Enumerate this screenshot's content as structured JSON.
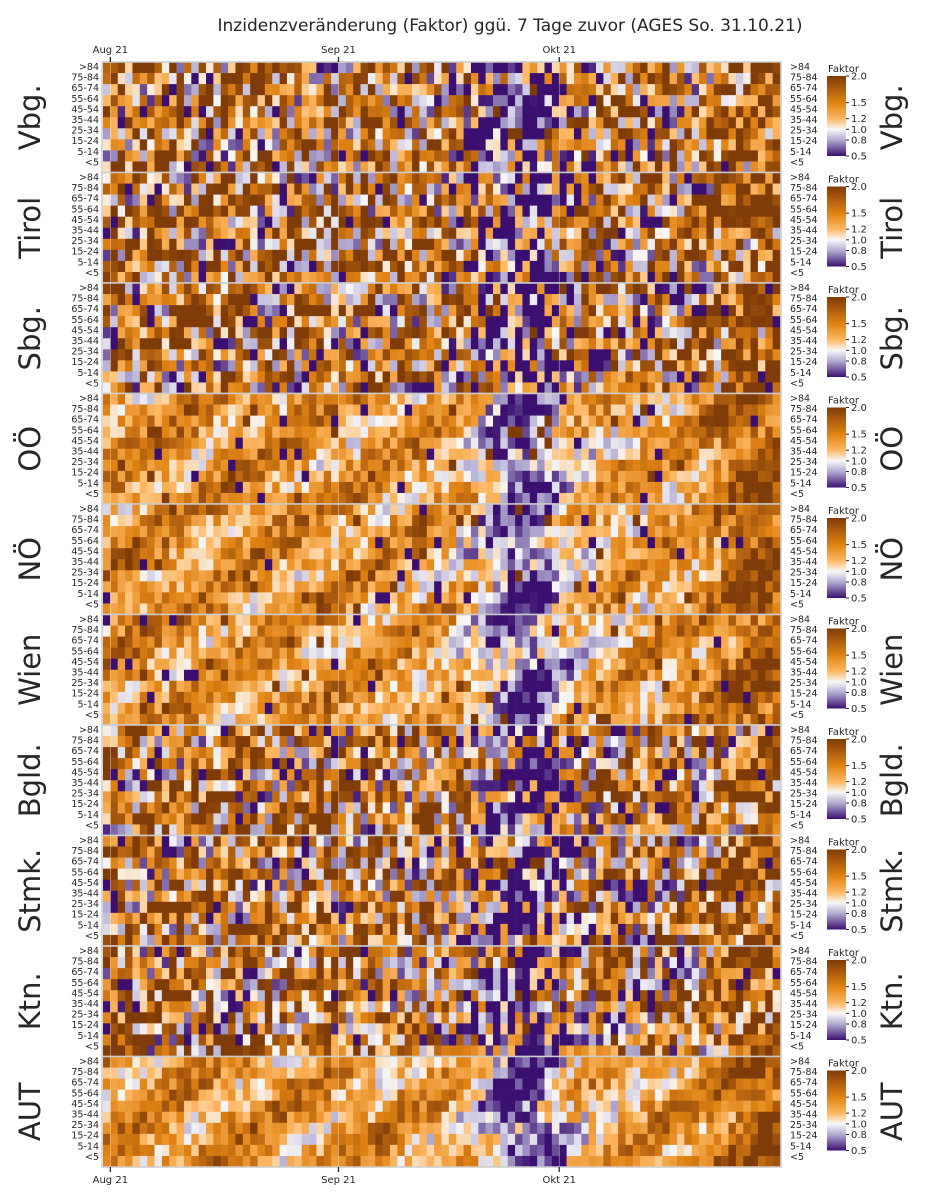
{
  "chart_data": {
    "type": "heatmap",
    "title": "Inzidenzveränderung (Faktor) ggü. 7 Tage zuvor (AGES So. 31.10.21)",
    "x_ticks": [
      "Aug 21",
      "Sep 21",
      "Okt 21"
    ],
    "x_tick_dates": [
      "2021-08-01",
      "2021-09-01",
      "2021-10-01"
    ],
    "x_range": [
      "2021-07-31",
      "2021-10-31"
    ],
    "age_groups": [
      ">84",
      "75-84",
      "65-74",
      "55-64",
      "45-54",
      "35-44",
      "25-34",
      "15-24",
      "5-14",
      "<5"
    ],
    "regions": [
      "Vbg.",
      "Tirol",
      "Sbg.",
      "OÖ",
      "NÖ",
      "Wien",
      "Bgld.",
      "Stmk.",
      "Ktn.",
      "AUT"
    ],
    "colorbar": {
      "label": "Faktor",
      "ticks": [
        0.5,
        0.8,
        1.0,
        1.2,
        1.5,
        2.0
      ],
      "tick_labels": [
        "0.5",
        "0.8",
        "1.0",
        "1.2",
        "1.5",
        "2.0"
      ],
      "range": [
        0.5,
        2.0
      ],
      "colors": [
        "#3b0f70",
        "#b2abd2",
        "#f7f7f7",
        "#fdb863",
        "#e08214",
        "#7f3b08"
      ]
    },
    "pattern_note_values": {
      "mid_oct_dip_factor": 0.7,
      "late_oct_rise_factor": 1.8
    }
  }
}
